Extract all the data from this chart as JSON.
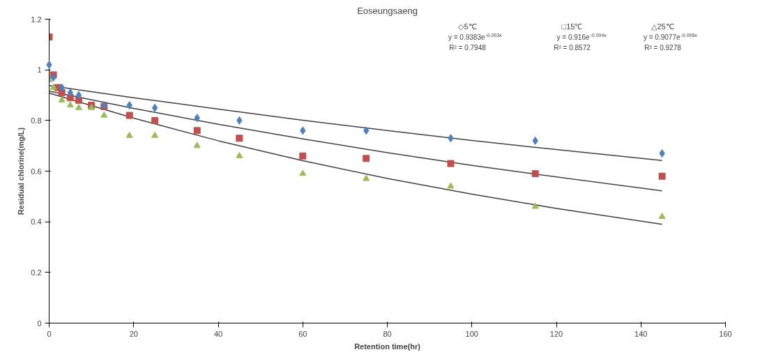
{
  "chart_data": {
    "type": "scatter",
    "title": "Eoseungsaeng",
    "xlabel": "Retention time(hr)",
    "ylabel": "Residual chlorine(mg/L)",
    "xlim": [
      0,
      160
    ],
    "xticks": [
      0,
      20,
      40,
      60,
      80,
      100,
      120,
      140,
      160
    ],
    "ylim": [
      0,
      1.2
    ],
    "yticks": [
      0,
      {
        "value": 0.2,
        "label": "0.2"
      },
      {
        "value": 0.4,
        "label": "0.4"
      },
      {
        "value": 0.6,
        "label": "0.6"
      },
      {
        "value": 0.8,
        "label": "0.8"
      },
      1,
      {
        "value": 1.2,
        "label": "1.2"
      }
    ],
    "grid": false,
    "annotations": [
      "◇5℃",
      "y = 0.9383e$^{-0.003x}$",
      "R² = 0.7948",
      "□15℃",
      "y = 0.916e$^{-0.004x}$",
      "R² = 0.8572",
      "△25℃",
      "y = 0.9077e$^{-0.006x}$",
      "R² = 0.9278"
    ],
    "series": [
      {
        "type": "line",
        "color": "#404040",
        "x": [
          0,
          20,
          40,
          60,
          80,
          100,
          120,
          145
        ],
        "values": [
          0.938,
          0.89,
          0.845,
          0.801,
          0.76,
          0.721,
          0.685,
          0.642
        ]
      },
      {
        "type": "line",
        "color": "#404040",
        "x": [
          0,
          20,
          40,
          60,
          80,
          100,
          120,
          145
        ],
        "values": [
          0.916,
          0.848,
          0.785,
          0.727,
          0.673,
          0.623,
          0.577,
          0.522
        ]
      },
      {
        "type": "line",
        "color": "#404040",
        "x": [
          0,
          20,
          40,
          60,
          80,
          100,
          120,
          145
        ],
        "values": [
          0.908,
          0.809,
          0.72,
          0.641,
          0.571,
          0.509,
          0.453,
          0.39
        ]
      },
      {
        "marker": "diamond",
        "color": "#4f81bd",
        "x": [
          0,
          1,
          3,
          5,
          7,
          10,
          13,
          19,
          25,
          35,
          45,
          60,
          75,
          95,
          115,
          145
        ],
        "values": [
          1.02,
          0.97,
          0.93,
          0.91,
          0.9,
          null,
          0.86,
          0.86,
          0.85,
          0.81,
          0.8,
          0.76,
          0.76,
          0.73,
          0.72,
          0.67
        ]
      },
      {
        "marker": "square",
        "color": "#c0504d",
        "x": [
          0,
          1,
          2,
          3,
          5,
          7,
          10,
          13,
          19,
          25,
          35,
          45,
          60,
          75,
          95,
          115,
          145
        ],
        "values": [
          1.13,
          0.98,
          0.93,
          0.91,
          0.89,
          0.88,
          0.86,
          0.855,
          0.82,
          0.8,
          0.76,
          0.73,
          0.66,
          0.65,
          0.63,
          0.59,
          0.58
        ]
      },
      {
        "marker": "triangle",
        "color": "#9bbb59",
        "x": [
          0,
          1,
          3,
          5,
          7,
          10,
          13,
          19,
          25,
          35,
          45,
          60,
          75,
          95,
          115,
          145
        ],
        "values": [
          0.96,
          0.93,
          0.88,
          0.86,
          0.85,
          0.85,
          0.82,
          0.74,
          0.74,
          0.7,
          0.66,
          0.59,
          0.57,
          0.54,
          0.46,
          0.42
        ]
      }
    ]
  }
}
